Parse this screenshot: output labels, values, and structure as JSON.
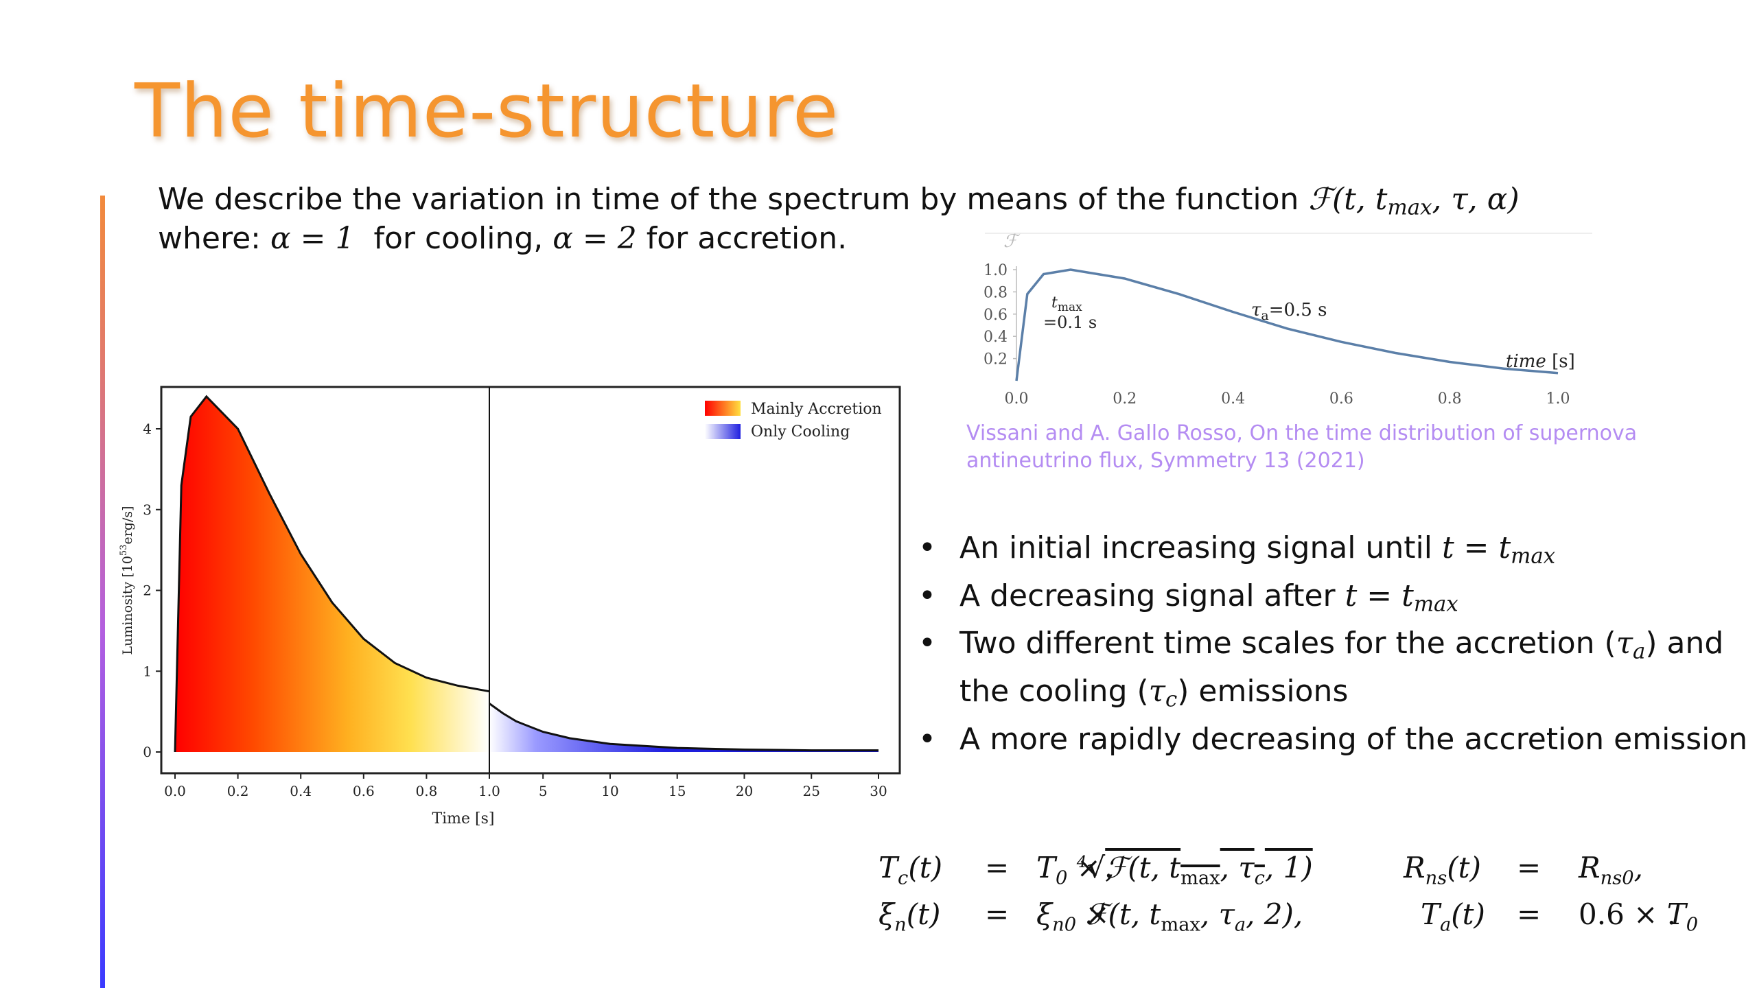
{
  "slide": {
    "title": "The time-structure",
    "intro": {
      "line1_prefix": "We describe the variation in time of the spectrum by means of the function ",
      "func_symbol": "ℱ",
      "func_open": "(t, t",
      "func_sub": "max",
      "func_close": ", τ, α)",
      "line2_prefix": "where: ",
      "alpha1": "α = 1",
      "cooling_text": "  for cooling, ",
      "alpha2": "α = 2",
      "accretion_text": " for accretion."
    },
    "citation": "Vissani and A. Gallo Rosso, On the time distribution of supernova antineutrino flux, Symmetry 13 (2021)",
    "bullets": [
      {
        "text": "An initial increasing signal until ",
        "math": "t = t",
        "sub": "max",
        "after": ""
      },
      {
        "text": "A decreasing signal after ",
        "math": "t = t",
        "sub": "max",
        "after": ""
      },
      {
        "text": "Two different time scales for the accretion (",
        "math": "τ",
        "sub": "a",
        "after": ") and the cooling (",
        "math2": "τ",
        "sub2": "c",
        "after2": ") emissions"
      },
      {
        "text": "A more rapidly decreasing of the accretion emission",
        "math": "",
        "sub": "",
        "after": ""
      }
    ],
    "equations": [
      {
        "lhs1": "T_c(t)",
        "eq1": "=",
        "rhs1": "T_0 × ⁴√ℱ(t, t_max, τ_c, 1),",
        "lhs2": "R_ns(t)",
        "eq2": "=",
        "rhs2": "R_ns0,"
      },
      {
        "lhs1": "ξ_n(t)",
        "eq1": "=",
        "rhs1": "ξ_n0 × ℱ(t, t_max, τ_a, 2),",
        "lhs2": "T_a(t)",
        "eq2": "=",
        "rhs2": "0.6 × T_0."
      }
    ]
  },
  "chart_data": [
    {
      "type": "line",
      "ylabel": "ℱ",
      "xlabel": "time [s]",
      "xlim": [
        0,
        1.0
      ],
      "ylim": [
        0,
        1.0
      ],
      "x_ticks": [
        "0.0",
        "0.2",
        "0.4",
        "0.6",
        "0.8",
        "1.0"
      ],
      "y_ticks": [
        "0.2",
        "0.4",
        "0.6",
        "0.8",
        "1.0"
      ],
      "annotations": [
        "t_max =0.1 s",
        "τa=0.5 s"
      ],
      "t_max": 0.1,
      "tau": 0.5,
      "color": "#5b7fa8",
      "series": [
        {
          "x": [
            0,
            0.02,
            0.05,
            0.1,
            0.2,
            0.3,
            0.4,
            0.5,
            0.6,
            0.7,
            0.8,
            0.9,
            1.0
          ],
          "y": [
            0,
            0.78,
            0.96,
            1.0,
            0.92,
            0.78,
            0.62,
            0.47,
            0.35,
            0.25,
            0.17,
            0.11,
            0.07
          ]
        }
      ]
    },
    {
      "type": "area",
      "xlabel": "Time [s]",
      "ylabel": "Luminosity [10^53 erg/s]",
      "ylim": [
        0,
        4.5
      ],
      "x_ticks_left": [
        "0.0",
        "0.2",
        "0.4",
        "0.6",
        "0.8",
        "1.0"
      ],
      "x_ticks_right": [
        "5",
        "10",
        "15",
        "20",
        "25",
        "30"
      ],
      "y_ticks": [
        "0",
        "1",
        "2",
        "3",
        "4"
      ],
      "legend_position": "top-right",
      "legend": [
        {
          "label": "Mainly Accretion",
          "colors": [
            "#ff0000",
            "#ffe040"
          ]
        },
        {
          "label": "Only Cooling",
          "colors": [
            "#ffffff",
            "#2020e0"
          ]
        }
      ],
      "series": [
        {
          "name": "Mainly Accretion",
          "x": [
            0,
            0.02,
            0.05,
            0.1,
            0.2,
            0.3,
            0.4,
            0.5,
            0.6,
            0.7,
            0.8,
            0.9,
            1.0
          ],
          "y": [
            0,
            3.3,
            4.15,
            4.4,
            4.0,
            3.2,
            2.45,
            1.85,
            1.4,
            1.1,
            0.92,
            0.82,
            0.75
          ]
        },
        {
          "name": "Only Cooling",
          "x": [
            1,
            2,
            3,
            5,
            7,
            10,
            15,
            20,
            25,
            30
          ],
          "y": [
            0.6,
            0.48,
            0.38,
            0.25,
            0.17,
            0.1,
            0.05,
            0.03,
            0.02,
            0.02
          ]
        }
      ]
    }
  ]
}
